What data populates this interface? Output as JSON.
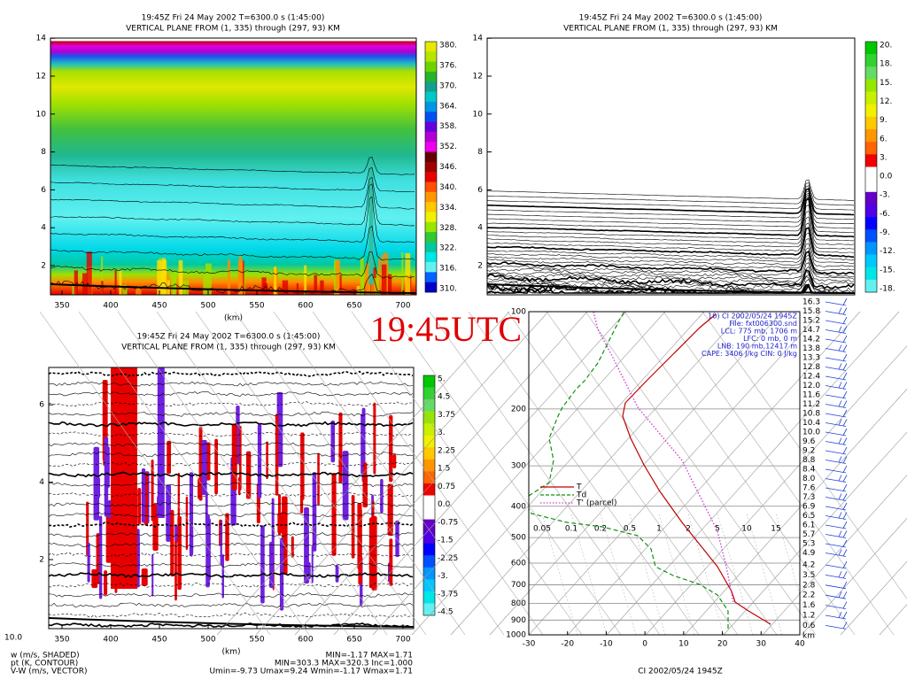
{
  "overlay_label": "19:45UTC",
  "panels": [
    {
      "title": "19:45Z Fri 24 May 2002      T=6300.0 s (1:45:00)",
      "subtitle": "VERTICAL PLANE FROM (1, 335) through (297, 93) KM",
      "xticks": [
        "350",
        "400",
        "450",
        "500",
        "550",
        "600",
        "650",
        "700"
      ],
      "yticks": [
        "2",
        "4",
        "6",
        "8",
        "10",
        "12",
        "14"
      ],
      "xlabel": "(km)",
      "colorbar": [
        "380.",
        "376.",
        "370.",
        "364.",
        "358.",
        "352.",
        "346.",
        "340.",
        "334.",
        "328.",
        "322.",
        "316.",
        "310."
      ]
    },
    {
      "title": "19:45Z Fri 24 May 2002      T=6300.0 s (1:45:00)",
      "subtitle": "VERTICAL PLANE FROM (1, 335) through (297, 93) KM",
      "yticks": [
        "2",
        "4",
        "6",
        "8",
        "10",
        "12",
        "14"
      ],
      "colorbar": [
        "20.",
        "18.",
        "15.",
        "12.",
        "9.",
        "6.",
        "3.",
        "0.0",
        "-3.",
        "-6.",
        "-9.",
        "-12.",
        "-15.",
        "-18."
      ]
    },
    {
      "title": "19:45Z Fri 24 May 2002      T=6300.0 s (1:45:00)",
      "subtitle": "VERTICAL PLANE FROM (1, 335) through (297, 93) KM",
      "xticks": [
        "350",
        "400",
        "450",
        "500",
        "550",
        "600",
        "650",
        "700"
      ],
      "yticks": [
        "2",
        "4",
        "6"
      ],
      "xlabel": "(km)",
      "colorbar": [
        "5.",
        "4.5",
        "3.75",
        "3.",
        "2.25",
        "1.5",
        "0.75",
        "0.0",
        "-0.75",
        "-1.5",
        "-2.25",
        "-3.",
        "-3.75",
        "-4.5"
      ],
      "corner": "10.0",
      "footer_left": [
        "w (m/s, SHADED)",
        "pt (K, CONTOUR)",
        "V-W (m/s, VECTOR)"
      ],
      "footer_right": [
        "MIN=-1.17 MAX=1.71",
        "MIN=303.3 MAX=320.3 Inc=1.000",
        "Umin=-9.73 Umax=9.24 Wmin=-1.17 Wmax=1.71"
      ]
    }
  ],
  "skewt": {
    "pressure_ticks": [
      "100",
      "200",
      "300",
      "400",
      "500",
      "600",
      "700",
      "800",
      "900",
      "1000"
    ],
    "temp_ticks": [
      "-30",
      "-20",
      "-10",
      "0",
      "10",
      "20",
      "30",
      "40"
    ],
    "heights": [
      "16.3",
      "15.8",
      "15.2",
      "14.7",
      "14.2",
      "13.8",
      "13.3",
      "12.8",
      "12.4",
      "12.0",
      "11.6",
      "11.2",
      "10.8",
      "10.4",
      "10.0",
      "9.6",
      "9.2",
      "8.8",
      "8.4",
      "8.0",
      "7.6",
      "7.3",
      "6.9",
      "6.5",
      "6.1",
      "5.7",
      "5.3",
      "4.9",
      "4.2",
      "3.5",
      "2.8",
      "2.2",
      "1.6",
      "1.2",
      "0.6",
      "km"
    ],
    "info": [
      "10)  CI   2002/05/24 1945Z",
      "File:  fxt006300.snd",
      "LCL:  775 mb,  1706  m",
      "LFC:     0 mb,       0  m",
      "LNB:  190 mb,12417  m",
      "CAPE: 3406  J/kg    CIN:    0  J/kg"
    ],
    "legend": [
      "T",
      "Td",
      "T' (parcel)"
    ],
    "mix_labels": [
      "0.05",
      "0.1",
      "0.2",
      "0.5",
      "1",
      "2",
      "5",
      "10",
      "15"
    ],
    "caption": "CI    2002/05/24 1945Z"
  }
}
